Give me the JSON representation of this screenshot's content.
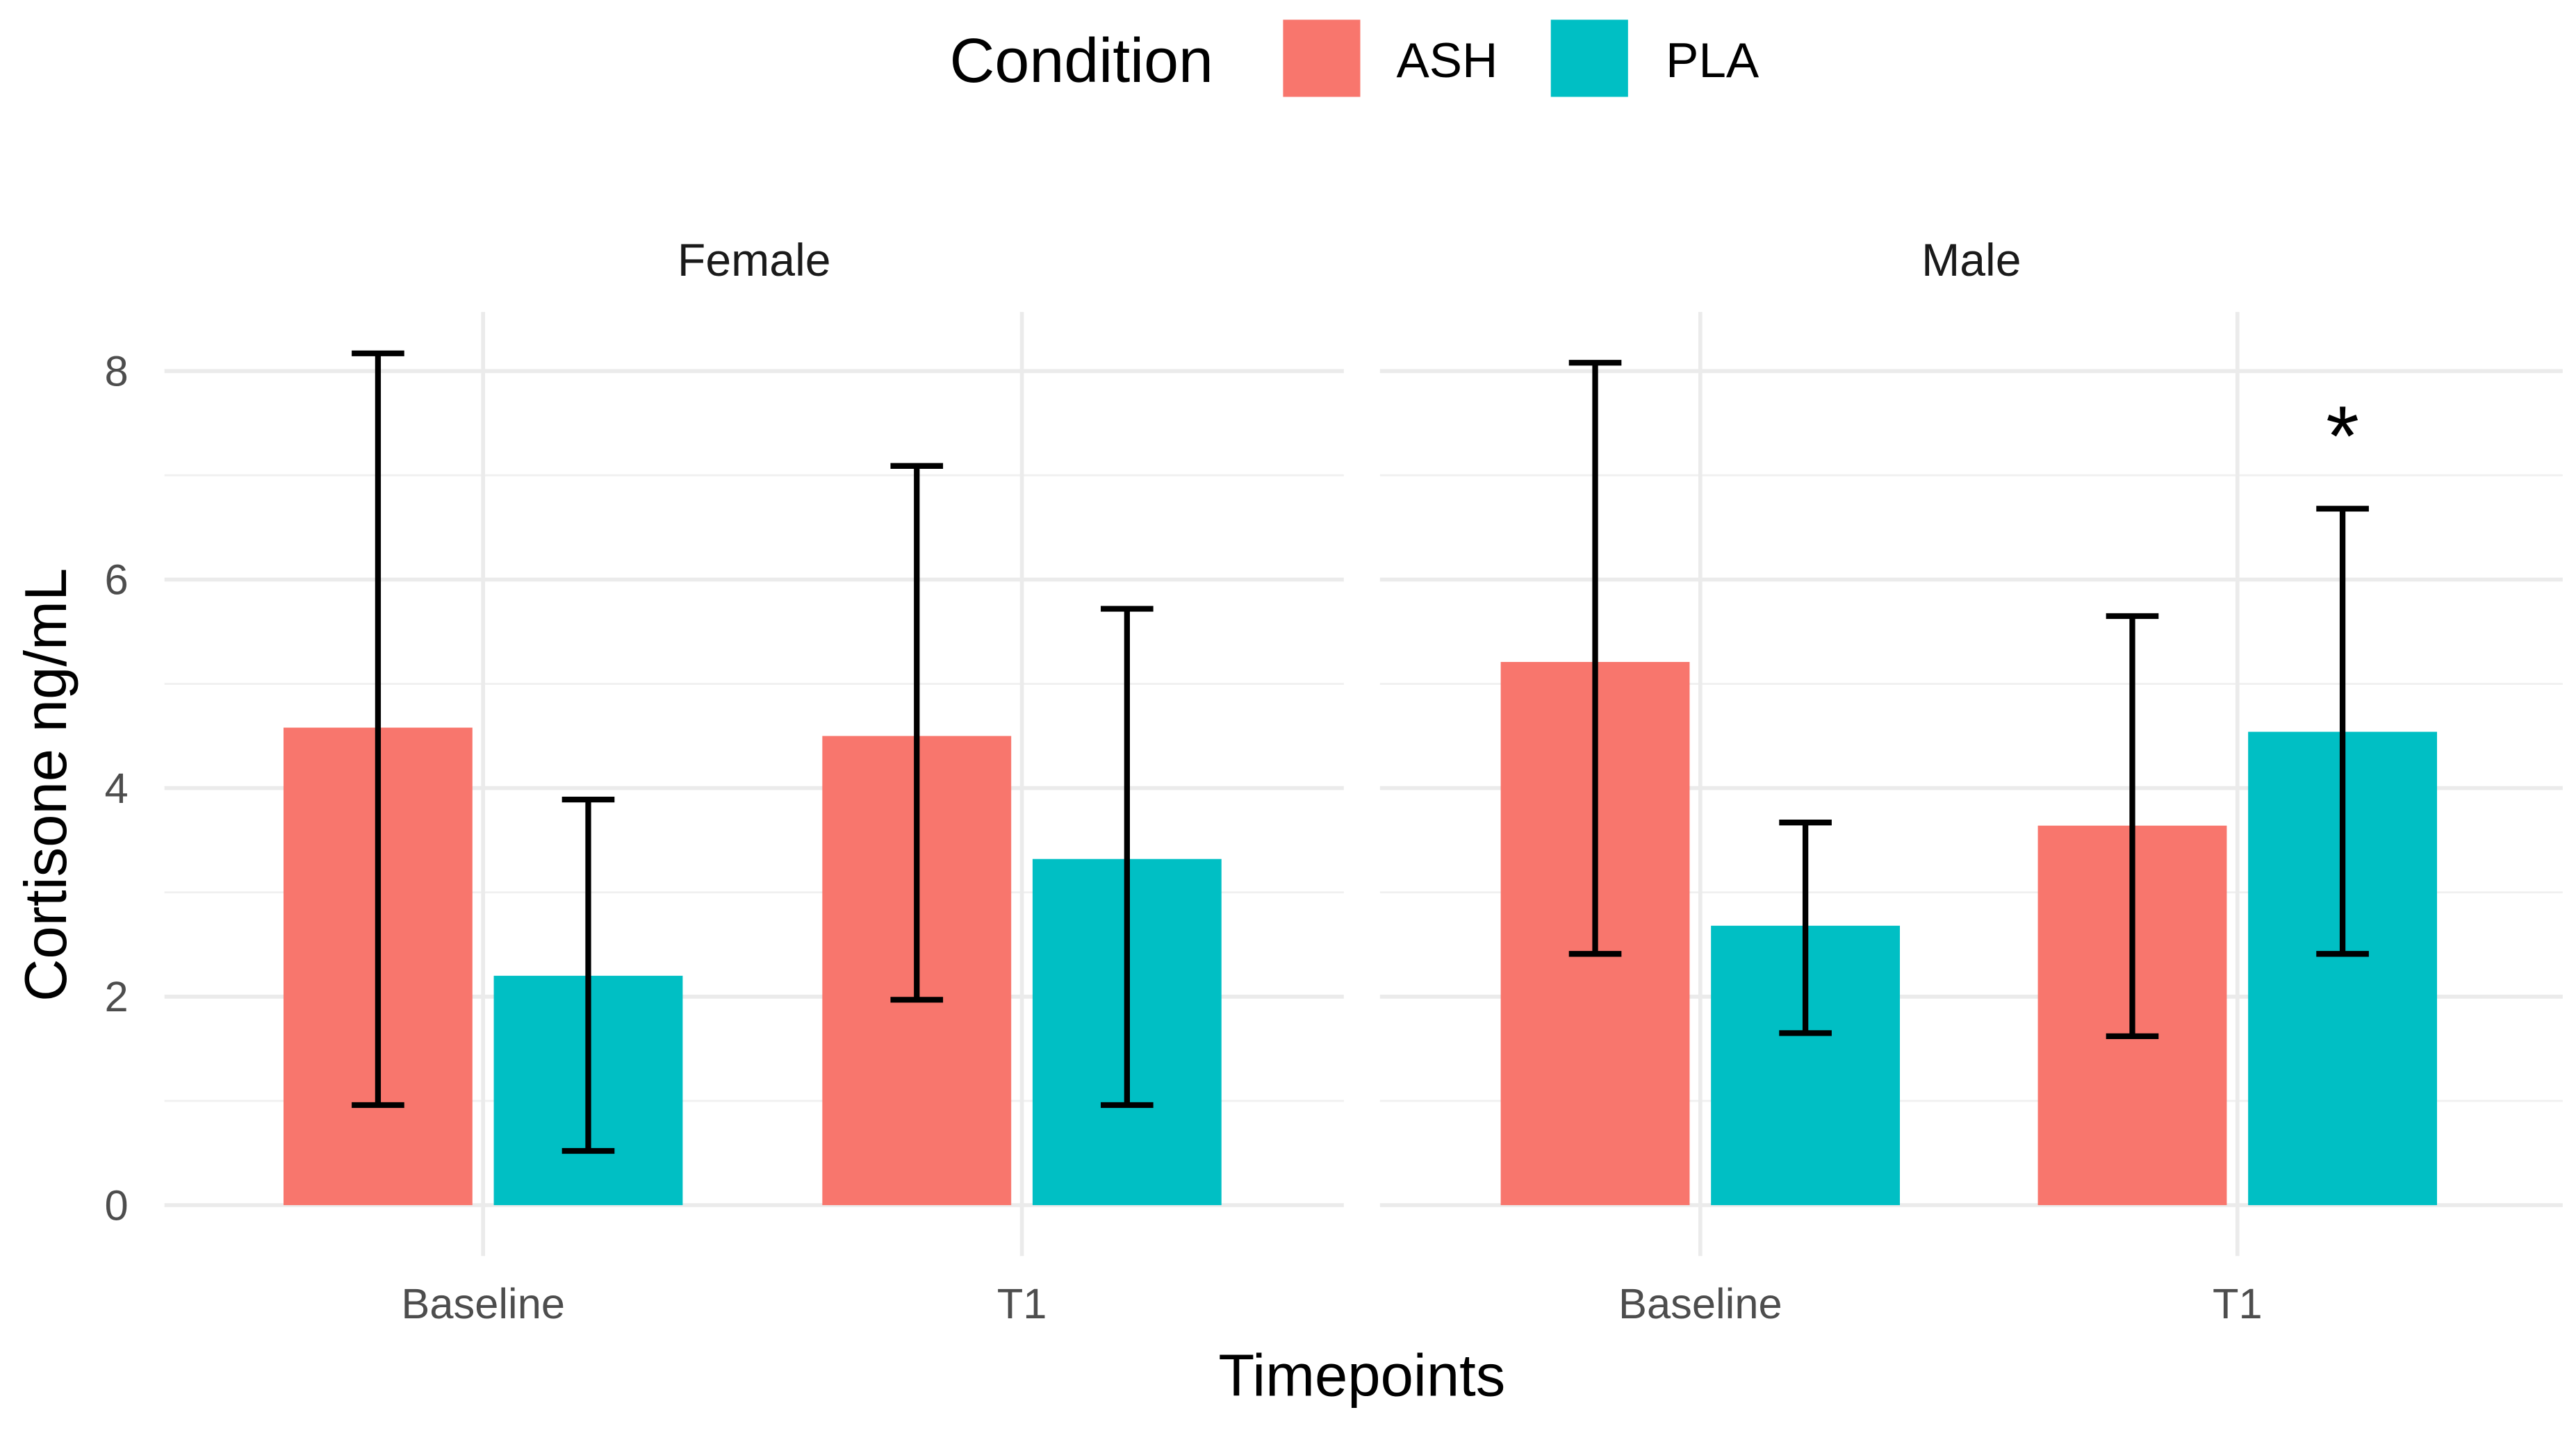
{
  "chart_data": {
    "type": "bar",
    "legend": {
      "title": "Condition",
      "position": "top",
      "entries": [
        {
          "name": "ASH",
          "color": "#F8766D"
        },
        {
          "name": "PLA",
          "color": "#00BFC4"
        }
      ]
    },
    "xlabel": "Timepoints",
    "ylabel": "Cortisone ng/mL",
    "ylim": [
      0,
      8
    ],
    "yticks": [
      "0",
      "2",
      "4",
      "6",
      "8"
    ],
    "categories": [
      "Baseline",
      "T1"
    ],
    "grid": true,
    "panels": [
      {
        "label": "Female",
        "series": [
          {
            "name": "ASH",
            "values": [
              4.58,
              4.5
            ],
            "error_low": [
              0.96,
              1.97
            ],
            "error_high": [
              8.17,
              7.09
            ]
          },
          {
            "name": "PLA",
            "values": [
              2.2,
              3.32
            ],
            "error_low": [
              0.52,
              0.96
            ],
            "error_high": [
              3.89,
              5.72
            ]
          }
        ],
        "annotations": []
      },
      {
        "label": "Male",
        "series": [
          {
            "name": "ASH",
            "values": [
              5.21,
              3.64
            ],
            "error_low": [
              2.41,
              1.62
            ],
            "error_high": [
              8.08,
              5.65
            ]
          },
          {
            "name": "PLA",
            "values": [
              2.68,
              4.54
            ],
            "error_low": [
              1.65,
              2.41
            ],
            "error_high": [
              3.67,
              6.68
            ]
          }
        ],
        "annotations": [
          {
            "text": "*",
            "category": "T1",
            "series": "PLA",
            "y": 7.6
          }
        ]
      }
    ]
  }
}
